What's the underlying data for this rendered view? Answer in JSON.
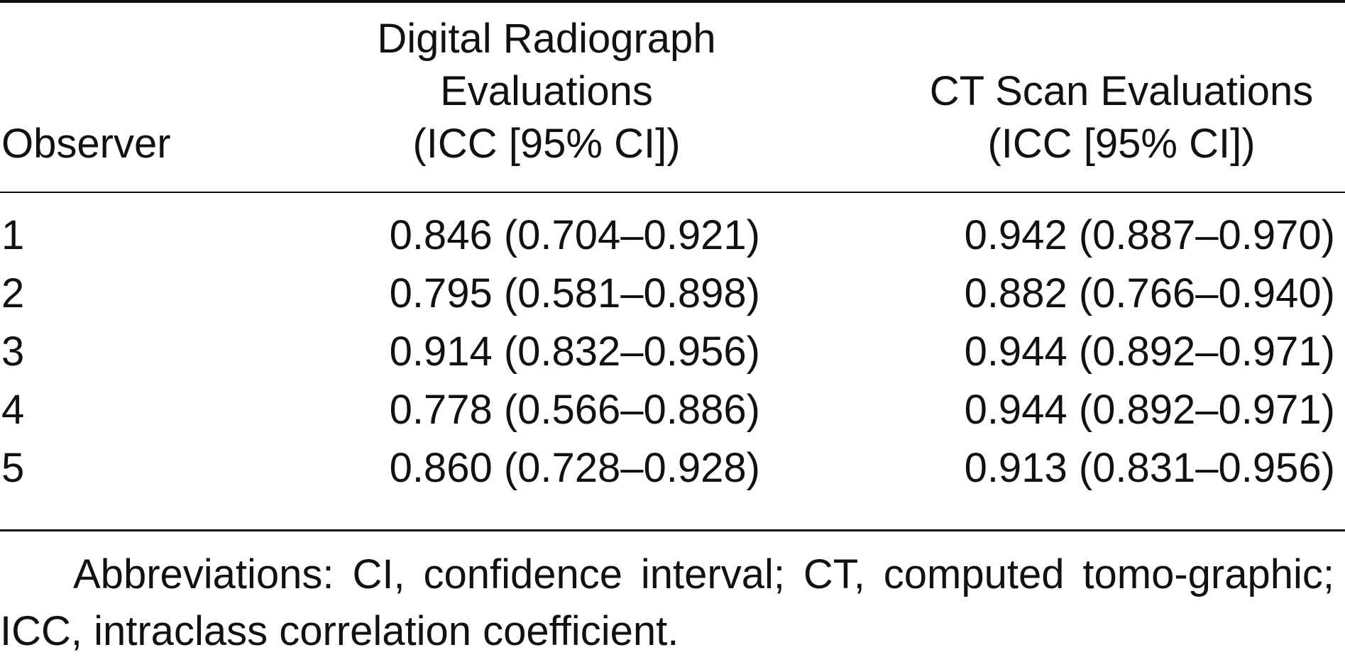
{
  "table": {
    "headers": {
      "observer": "Observer",
      "digital_radiograph": [
        "Digital Radiograph",
        "Evaluations",
        "(ICC [95% CI])"
      ],
      "ct_scan": [
        "CT Scan Evaluations",
        "(ICC [95% CI])"
      ]
    },
    "rows": [
      {
        "observer": "1",
        "digital_radiograph": "0.846 (0.704–0.921)",
        "ct_scan": "0.942 (0.887–0.970)"
      },
      {
        "observer": "2",
        "digital_radiograph": "0.795 (0.581–0.898)",
        "ct_scan": "0.882 (0.766–0.940)"
      },
      {
        "observer": "3",
        "digital_radiograph": "0.914 (0.832–0.956)",
        "ct_scan": "0.944 (0.892–0.971)"
      },
      {
        "observer": "4",
        "digital_radiograph": "0.778 (0.566–0.886)",
        "ct_scan": "0.944 (0.892–0.971)"
      },
      {
        "observer": "5",
        "digital_radiograph": "0.860 (0.728–0.928)",
        "ct_scan": "0.913 (0.831–0.956)"
      }
    ]
  },
  "footnote": "Abbreviations: CI, confidence interval; CT, computed tomo-graphic; ICC, intraclass correlation coefficient."
}
